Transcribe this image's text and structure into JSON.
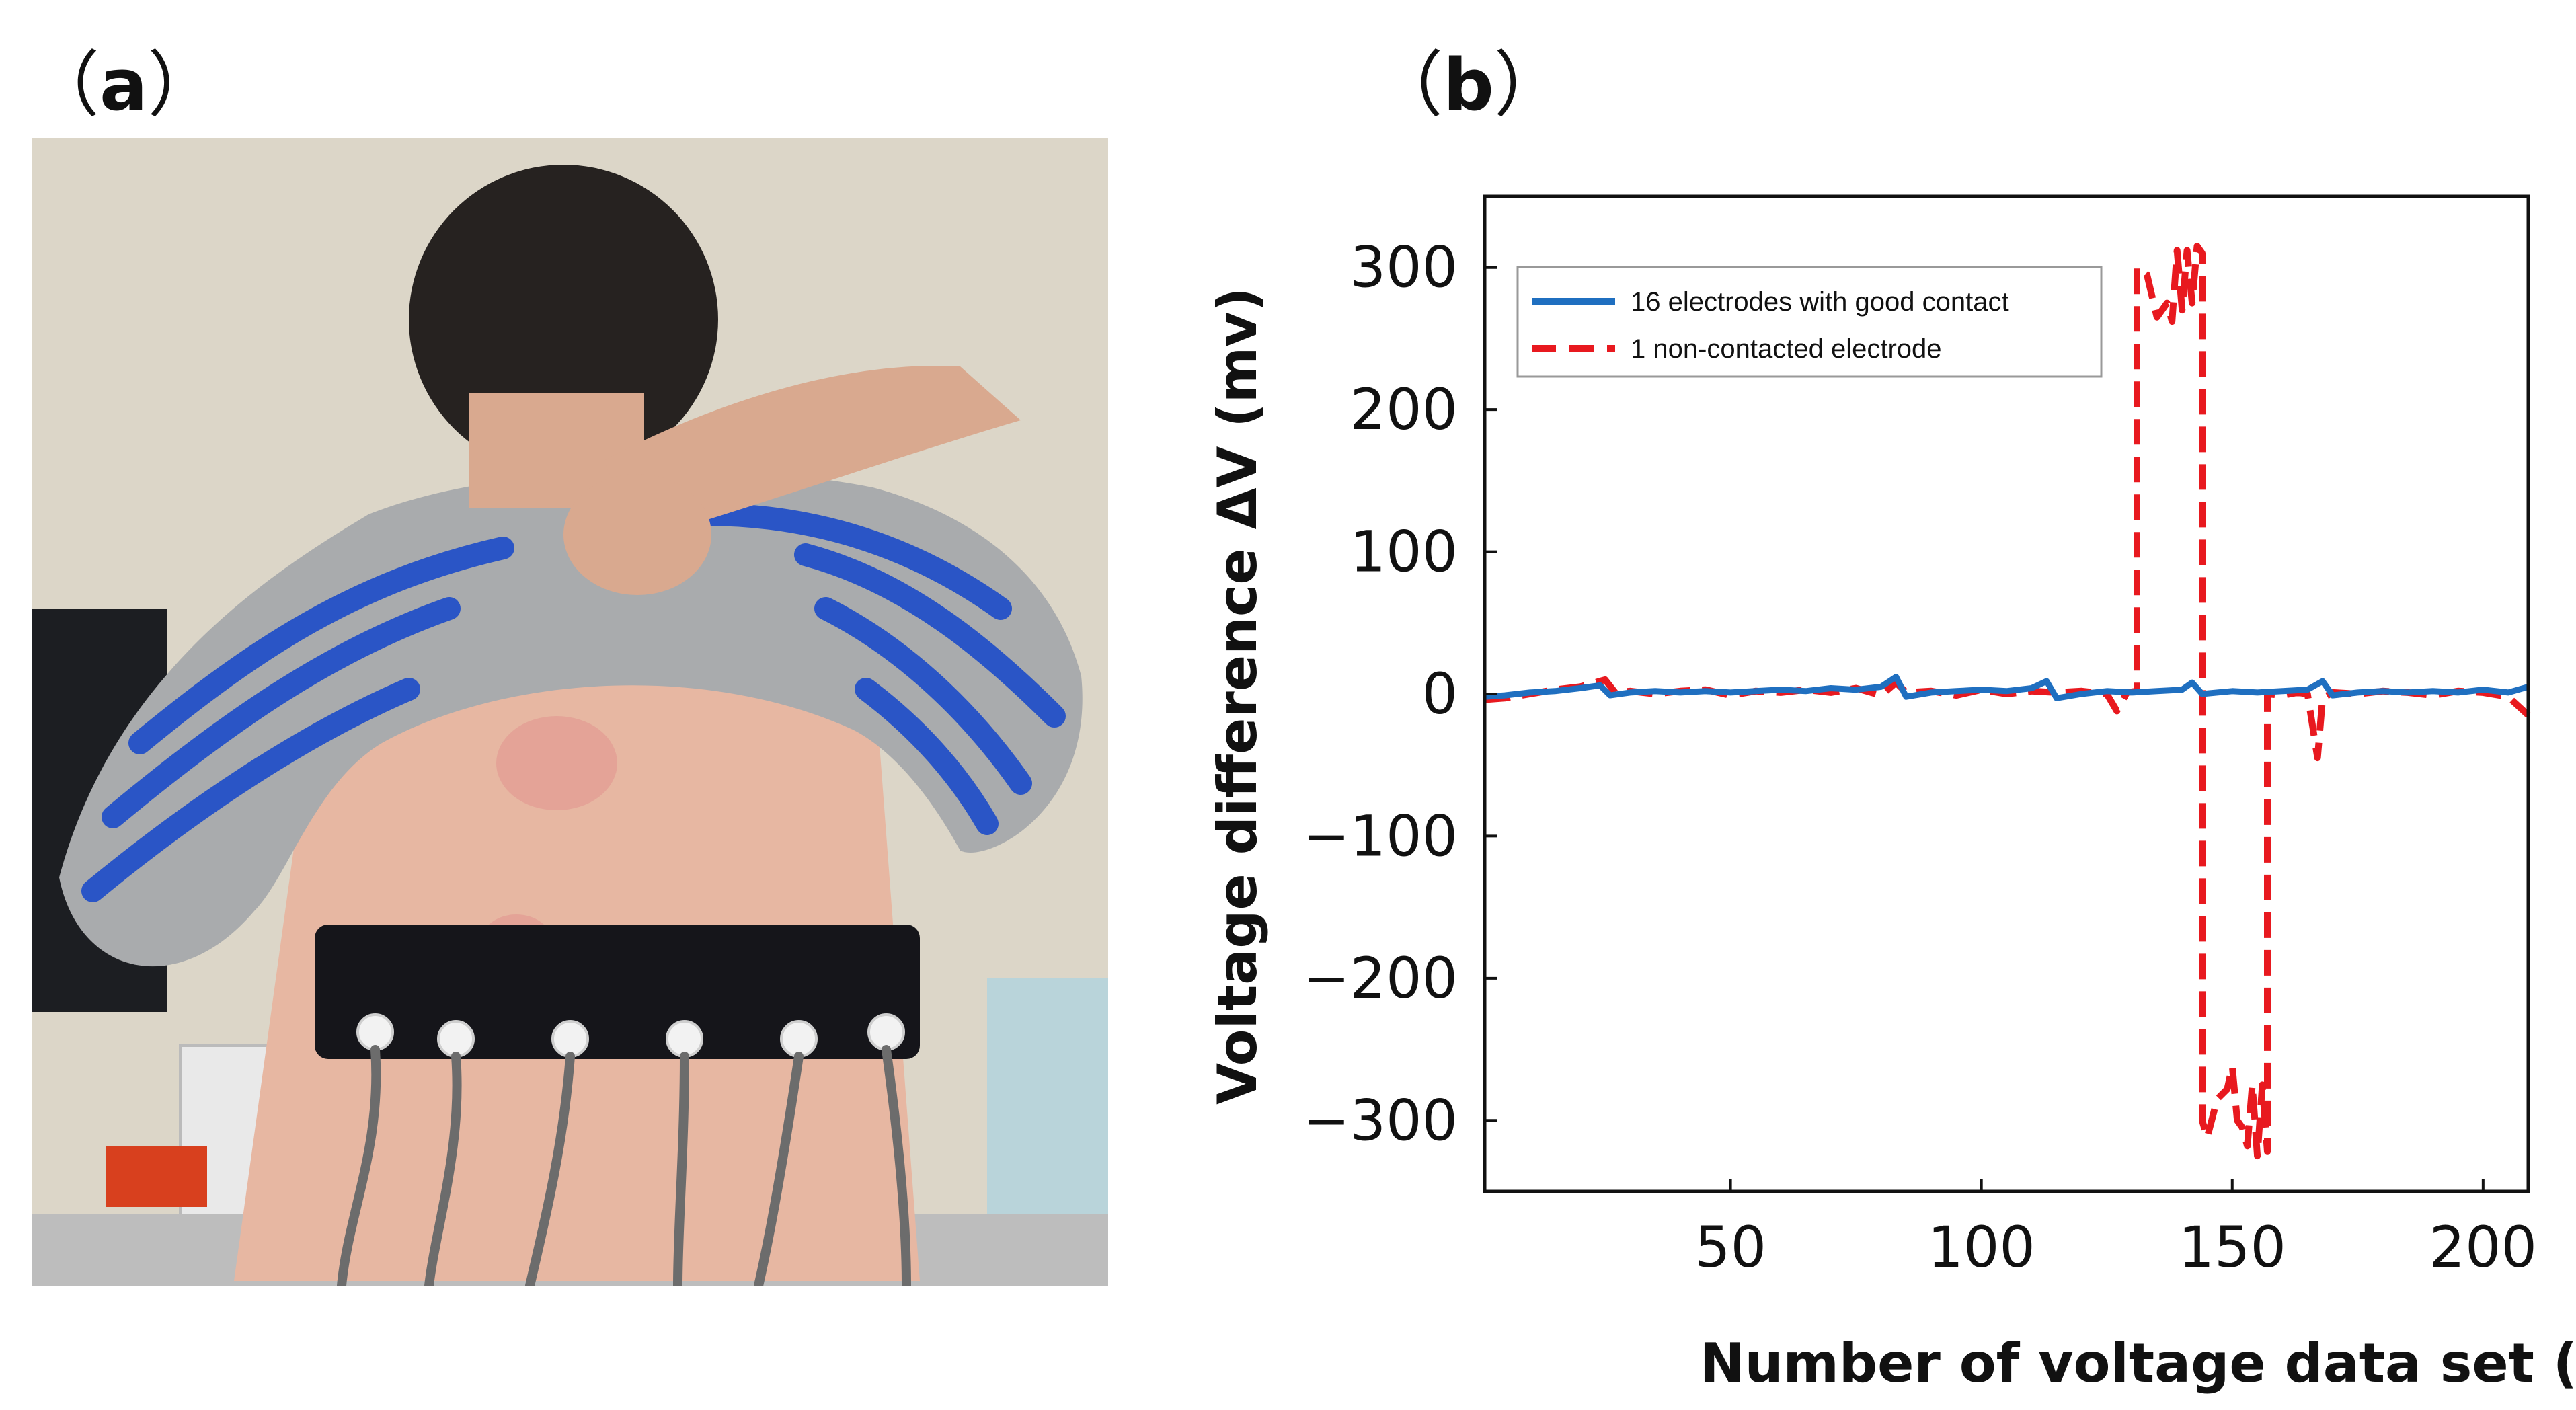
{
  "panels": {
    "a": {
      "open": "（",
      "letter": "a",
      "close": "）"
    },
    "b": {
      "open": "（",
      "letter": "b",
      "close": "）"
    }
  },
  "photo": {
    "band_color": "#15151a",
    "shirt_gray": "#a9abad",
    "shirt_blue": "#2a55c6",
    "skin": "#e7b7a2",
    "electrode_count_visible": 6
  },
  "chart_data": {
    "type": "line",
    "xlabel": "Number of voltage data set (points)",
    "ylabel": "Voltage difference ΔV (mv)",
    "xlim": [
      1,
      209
    ],
    "ylim": [
      -350,
      350
    ],
    "xticks": [
      50,
      100,
      150,
      200
    ],
    "yticks": [
      300,
      200,
      100,
      0,
      -100,
      -200,
      -300
    ],
    "ytick_labels": [
      "300",
      "200",
      "100",
      "0",
      "−100",
      "−200",
      "−300"
    ],
    "grid": false,
    "legend_position": "top-left",
    "series": [
      {
        "name": "16 electrodes with good contact",
        "color": "#1f6fc0",
        "style": "solid",
        "points": [
          [
            1,
            -2
          ],
          [
            5,
            -1
          ],
          [
            10,
            1
          ],
          [
            15,
            2
          ],
          [
            20,
            4
          ],
          [
            24,
            6
          ],
          [
            26,
            -1
          ],
          [
            30,
            1
          ],
          [
            35,
            2
          ],
          [
            40,
            1
          ],
          [
            45,
            2
          ],
          [
            50,
            1
          ],
          [
            55,
            2
          ],
          [
            60,
            3
          ],
          [
            65,
            2
          ],
          [
            70,
            4
          ],
          [
            75,
            3
          ],
          [
            80,
            5
          ],
          [
            83,
            12
          ],
          [
            85,
            -2
          ],
          [
            90,
            1
          ],
          [
            95,
            2
          ],
          [
            100,
            3
          ],
          [
            105,
            2
          ],
          [
            110,
            4
          ],
          [
            113,
            9
          ],
          [
            115,
            -3
          ],
          [
            120,
            0
          ],
          [
            125,
            2
          ],
          [
            130,
            1
          ],
          [
            135,
            2
          ],
          [
            140,
            3
          ],
          [
            142,
            8
          ],
          [
            144,
            0
          ],
          [
            150,
            2
          ],
          [
            155,
            1
          ],
          [
            160,
            2
          ],
          [
            165,
            3
          ],
          [
            168,
            9
          ],
          [
            170,
            -1
          ],
          [
            175,
            1
          ],
          [
            180,
            2
          ],
          [
            185,
            1
          ],
          [
            190,
            2
          ],
          [
            195,
            1
          ],
          [
            200,
            3
          ],
          [
            205,
            1
          ],
          [
            209,
            5
          ]
        ]
      },
      {
        "name": "1 non-contacted electrode",
        "color": "#e8191f",
        "style": "dashed",
        "points": [
          [
            1,
            -4
          ],
          [
            5,
            -3
          ],
          [
            10,
            0
          ],
          [
            15,
            3
          ],
          [
            20,
            5
          ],
          [
            25,
            10
          ],
          [
            27,
            1
          ],
          [
            30,
            2
          ],
          [
            35,
            0
          ],
          [
            40,
            2
          ],
          [
            45,
            3
          ],
          [
            50,
            -1
          ],
          [
            55,
            2
          ],
          [
            60,
            1
          ],
          [
            65,
            3
          ],
          [
            70,
            1
          ],
          [
            75,
            4
          ],
          [
            80,
            -1
          ],
          [
            83,
            8
          ],
          [
            85,
            1
          ],
          [
            90,
            2
          ],
          [
            95,
            -1
          ],
          [
            100,
            3
          ],
          [
            105,
            0
          ],
          [
            110,
            2
          ],
          [
            115,
            1
          ],
          [
            120,
            2
          ],
          [
            125,
            0
          ],
          [
            127,
            -12
          ],
          [
            129,
            1
          ],
          [
            131,
            2
          ],
          [
            131,
            300
          ],
          [
            133,
            295
          ],
          [
            135,
            265
          ],
          [
            137,
            275
          ],
          [
            138,
            262
          ],
          [
            139,
            312
          ],
          [
            140,
            270
          ],
          [
            141,
            312
          ],
          [
            142,
            275
          ],
          [
            143,
            315
          ],
          [
            144,
            310
          ],
          [
            144,
            -300
          ],
          [
            145,
            -312
          ],
          [
            147,
            -285
          ],
          [
            149,
            -278
          ],
          [
            150,
            -262
          ],
          [
            151,
            -300
          ],
          [
            152,
            -305
          ],
          [
            153,
            -318
          ],
          [
            154,
            -275
          ],
          [
            155,
            -325
          ],
          [
            156,
            -275
          ],
          [
            157,
            -322
          ],
          [
            157,
            0
          ],
          [
            160,
            -1
          ],
          [
            163,
            1
          ],
          [
            165,
            0
          ],
          [
            167,
            -45
          ],
          [
            168,
            -3
          ],
          [
            170,
            1
          ],
          [
            175,
            0
          ],
          [
            180,
            2
          ],
          [
            185,
            1
          ],
          [
            190,
            -1
          ],
          [
            195,
            2
          ],
          [
            200,
            1
          ],
          [
            205,
            -2
          ],
          [
            209,
            -15
          ]
        ]
      }
    ]
  }
}
